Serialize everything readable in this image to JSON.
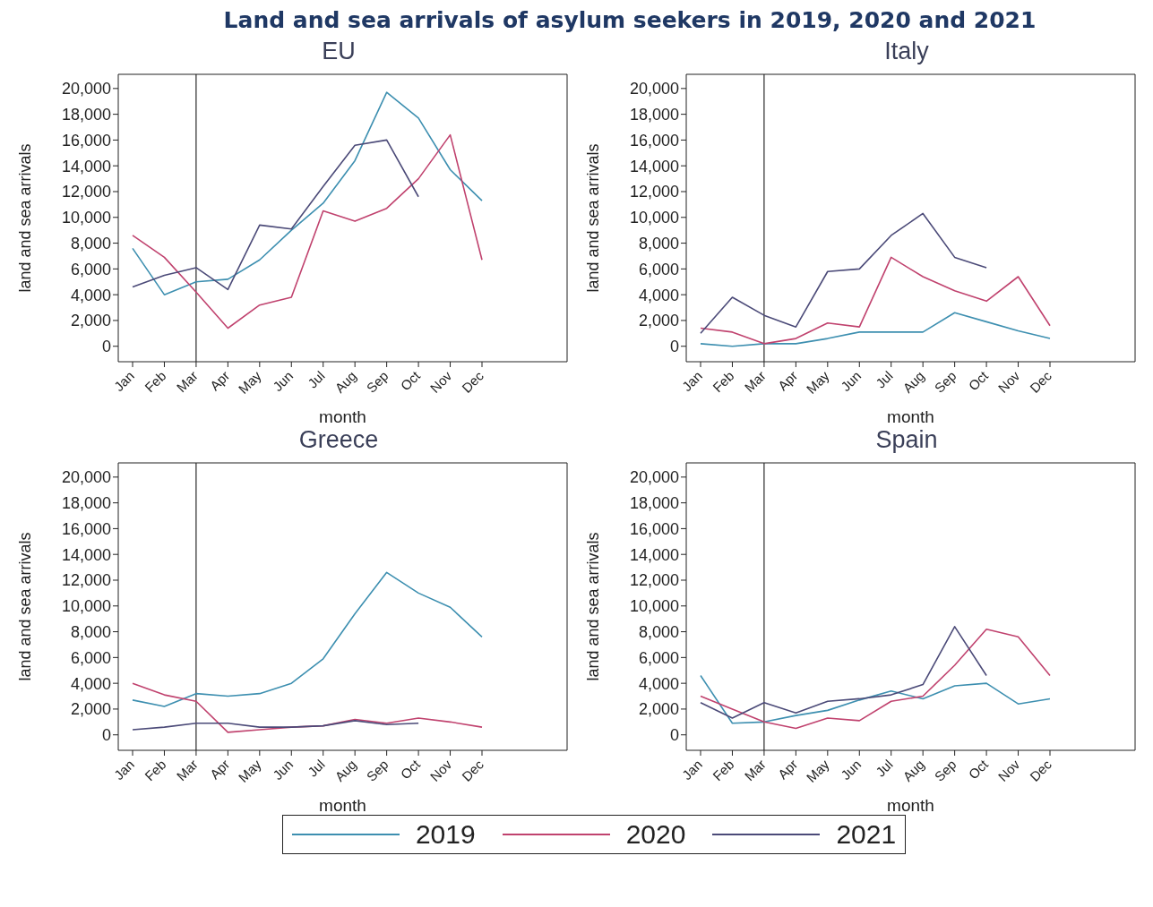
{
  "chart_data": [
    {
      "type": "line",
      "title": "Land and sea arrivals of asylum seekers in 2019, 2020 and 2021",
      "subtitle": "EU",
      "xlabel": "month",
      "ylabel": "land and sea arrivals",
      "categories": [
        "Jan",
        "Feb",
        "Mar",
        "Apr",
        "May",
        "Jun",
        "Jul",
        "Aug",
        "Sep",
        "Oct",
        "Nov",
        "Dec"
      ],
      "ylim": [
        -1200,
        21100
      ],
      "yticks": [
        {
          "value": 0,
          "label": "0"
        },
        {
          "value": 2000,
          "label": "2,000"
        },
        {
          "value": 4000,
          "label": "4,000"
        },
        {
          "value": 6000,
          "label": "6,000"
        },
        {
          "value": 8000,
          "label": "8,000"
        },
        {
          "value": 10000,
          "label": "10,000"
        },
        {
          "value": 12000,
          "label": "12,000"
        },
        {
          "value": 14000,
          "label": "14,000"
        },
        {
          "value": 16000,
          "label": "16,000"
        },
        {
          "value": 18000,
          "label": "18,000"
        },
        {
          "value": 20000,
          "label": "20,000"
        }
      ],
      "legend": "bottom",
      "ref_lines": [
        {
          "axis": "x",
          "value": "Mar",
          "color": "#000000"
        }
      ],
      "series": [
        {
          "name": "2019",
          "color": "#3d8fb0",
          "values": [
            7600,
            4000,
            5000,
            5200,
            6700,
            9000,
            11100,
            14400,
            19700,
            17700,
            13700,
            11300
          ]
        },
        {
          "name": "2020",
          "color": "#c0426e",
          "values": [
            8600,
            6900,
            4200,
            1400,
            3200,
            3800,
            10500,
            9700,
            10700,
            13000,
            16400,
            6700
          ]
        },
        {
          "name": "2021",
          "color": "#4b4a78",
          "values": [
            4600,
            5500,
            6100,
            4400,
            9400,
            9100,
            12400,
            15600,
            16000,
            11600,
            null,
            null
          ]
        }
      ]
    },
    {
      "type": "line",
      "subtitle": "Italy",
      "xlabel": "month",
      "ylabel": "land and sea arrivals",
      "categories": [
        "Jan",
        "Feb",
        "Mar",
        "Apr",
        "May",
        "Jun",
        "Jul",
        "Aug",
        "Sep",
        "Oct",
        "Nov",
        "Dec"
      ],
      "ylim": [
        -1200,
        21100
      ],
      "yticks": [
        {
          "value": 0,
          "label": "0"
        },
        {
          "value": 2000,
          "label": "2,000"
        },
        {
          "value": 4000,
          "label": "4,000"
        },
        {
          "value": 6000,
          "label": "6,000"
        },
        {
          "value": 8000,
          "label": "8,000"
        },
        {
          "value": 10000,
          "label": "10,000"
        },
        {
          "value": 12000,
          "label": "12,000"
        },
        {
          "value": 14000,
          "label": "14,000"
        },
        {
          "value": 16000,
          "label": "16,000"
        },
        {
          "value": 18000,
          "label": "18,000"
        },
        {
          "value": 20000,
          "label": "20,000"
        }
      ],
      "ref_lines": [
        {
          "axis": "x",
          "value": "Mar",
          "color": "#000000"
        }
      ],
      "series": [
        {
          "name": "2019",
          "color": "#3d8fb0",
          "values": [
            200,
            0,
            200,
            200,
            600,
            1100,
            1100,
            1100,
            2600,
            1900,
            1200,
            600
          ]
        },
        {
          "name": "2020",
          "color": "#c0426e",
          "values": [
            1400,
            1100,
            200,
            600,
            1800,
            1500,
            6900,
            5400,
            4300,
            3500,
            5400,
            1600
          ]
        },
        {
          "name": "2021",
          "color": "#4b4a78",
          "values": [
            1000,
            3800,
            2400,
            1500,
            5800,
            6000,
            8600,
            10300,
            6900,
            6100,
            null,
            null
          ]
        }
      ]
    },
    {
      "type": "line",
      "subtitle": "Greece",
      "xlabel": "month",
      "ylabel": "land and sea arrivals",
      "categories": [
        "Jan",
        "Feb",
        "Mar",
        "Apr",
        "May",
        "Jun",
        "Jul",
        "Aug",
        "Sep",
        "Oct",
        "Nov",
        "Dec"
      ],
      "ylim": [
        -1200,
        21100
      ],
      "yticks": [
        {
          "value": 0,
          "label": "0"
        },
        {
          "value": 2000,
          "label": "2,000"
        },
        {
          "value": 4000,
          "label": "4,000"
        },
        {
          "value": 6000,
          "label": "6,000"
        },
        {
          "value": 8000,
          "label": "8,000"
        },
        {
          "value": 10000,
          "label": "10,000"
        },
        {
          "value": 12000,
          "label": "12,000"
        },
        {
          "value": 14000,
          "label": "14,000"
        },
        {
          "value": 16000,
          "label": "16,000"
        },
        {
          "value": 18000,
          "label": "18,000"
        },
        {
          "value": 20000,
          "label": "20,000"
        }
      ],
      "ref_lines": [
        {
          "axis": "x",
          "value": "Mar",
          "color": "#000000"
        }
      ],
      "series": [
        {
          "name": "2019",
          "color": "#3d8fb0",
          "values": [
            2700,
            2200,
            3200,
            3000,
            3200,
            4000,
            5900,
            9400,
            12600,
            11000,
            9900,
            7600
          ]
        },
        {
          "name": "2020",
          "color": "#c0426e",
          "values": [
            4000,
            3100,
            2600,
            200,
            400,
            600,
            700,
            1200,
            900,
            1300,
            1000,
            600
          ]
        },
        {
          "name": "2021",
          "color": "#4b4a78",
          "values": [
            400,
            600,
            900,
            900,
            600,
            600,
            700,
            1100,
            800,
            900,
            null,
            null
          ]
        }
      ]
    },
    {
      "type": "line",
      "subtitle": "Spain",
      "xlabel": "month",
      "ylabel": "land and sea arrivals",
      "categories": [
        "Jan",
        "Feb",
        "Mar",
        "Apr",
        "May",
        "Jun",
        "Jul",
        "Aug",
        "Sep",
        "Oct",
        "Nov",
        "Dec"
      ],
      "ylim": [
        -1200,
        21100
      ],
      "yticks": [
        {
          "value": 0,
          "label": "0"
        },
        {
          "value": 2000,
          "label": "2,000"
        },
        {
          "value": 4000,
          "label": "4,000"
        },
        {
          "value": 6000,
          "label": "6,000"
        },
        {
          "value": 8000,
          "label": "8,000"
        },
        {
          "value": 10000,
          "label": "10,000"
        },
        {
          "value": 12000,
          "label": "12,000"
        },
        {
          "value": 14000,
          "label": "14,000"
        },
        {
          "value": 16000,
          "label": "16,000"
        },
        {
          "value": 18000,
          "label": "18,000"
        },
        {
          "value": 20000,
          "label": "20,000"
        }
      ],
      "ref_lines": [
        {
          "axis": "x",
          "value": "Mar",
          "color": "#000000"
        }
      ],
      "series": [
        {
          "name": "2019",
          "color": "#3d8fb0",
          "values": [
            4600,
            900,
            1000,
            1500,
            1900,
            2700,
            3400,
            2800,
            3800,
            4000,
            2400,
            2800
          ]
        },
        {
          "name": "2020",
          "color": "#c0426e",
          "values": [
            3000,
            2000,
            1000,
            500,
            1300,
            1100,
            2600,
            3000,
            5400,
            8200,
            7600,
            4600
          ]
        },
        {
          "name": "2021",
          "color": "#4b4a78",
          "values": [
            2500,
            1300,
            2500,
            1700,
            2600,
            2800,
            3100,
            3900,
            8400,
            4600,
            null,
            null
          ]
        }
      ]
    }
  ]
}
